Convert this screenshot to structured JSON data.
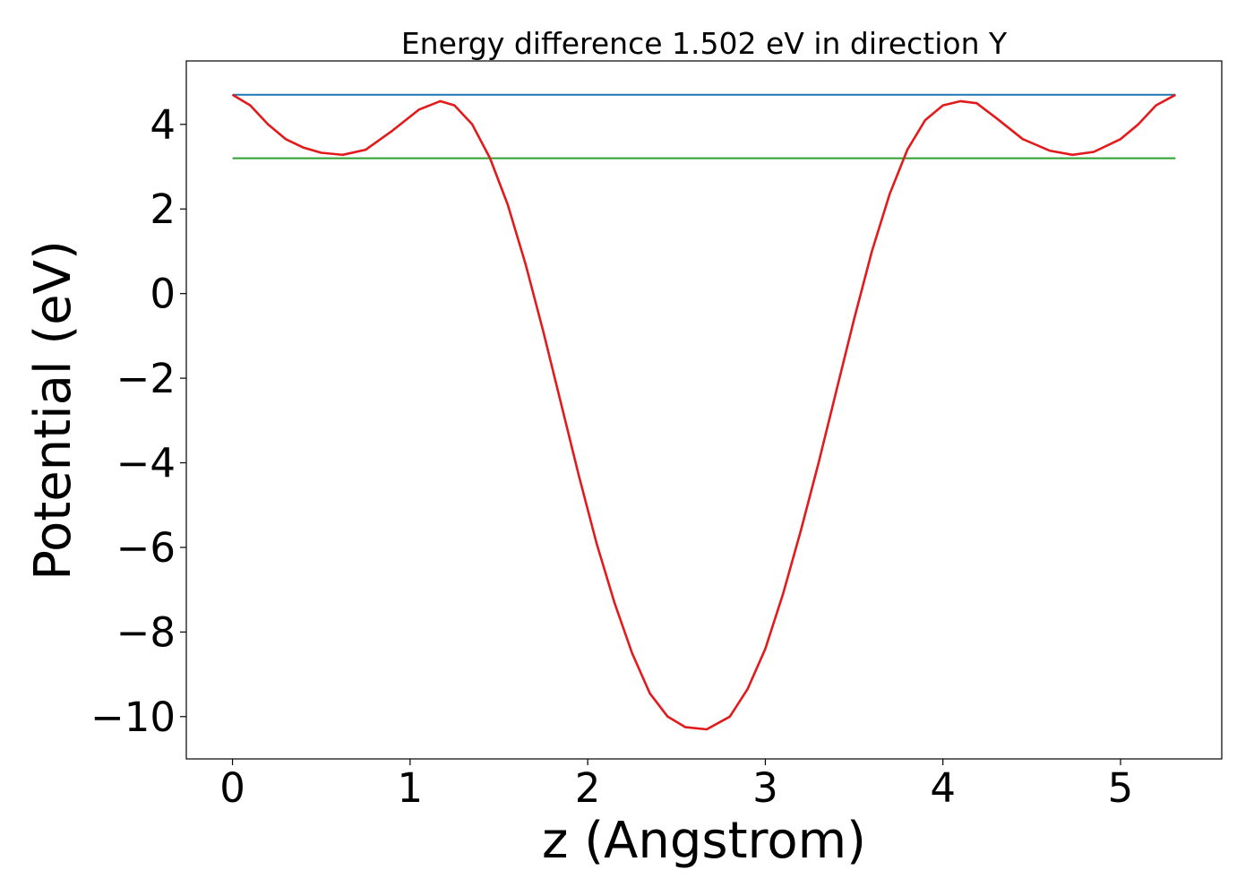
{
  "chart_data": {
    "type": "line",
    "title": "Energy difference 1.502 eV in direction Y",
    "xlabel": "z (Angstrom)",
    "ylabel": "Potential (eV)",
    "xlim": [
      -0.26,
      5.57
    ],
    "ylim": [
      -11.0,
      5.5
    ],
    "x_ticks": [
      0,
      1,
      2,
      3,
      4,
      5
    ],
    "x_tick_labels": [
      "0",
      "1",
      "2",
      "3",
      "4",
      "5"
    ],
    "y_ticks": [
      4,
      2,
      0,
      -2,
      -4,
      -6,
      -8,
      -10
    ],
    "y_tick_labels": [
      "4",
      "2",
      "0",
      "−2",
      "−4",
      "−6",
      "−8",
      "−10"
    ],
    "grid": false,
    "series": [
      {
        "color": "#1f77b4",
        "x": [
          0,
          5.31
        ],
        "y": [
          4.7,
          4.7
        ]
      },
      {
        "color": "#2ca02c",
        "x": [
          0,
          5.31
        ],
        "y": [
          3.2,
          3.2
        ]
      },
      {
        "color": "#e31a1c",
        "x": [
          0,
          0.1,
          0.2,
          0.3,
          0.4,
          0.5,
          0.62,
          0.75,
          0.9,
          1.05,
          1.17,
          1.25,
          1.35,
          1.45,
          1.55,
          1.65,
          1.75,
          1.85,
          1.95,
          2.05,
          2.15,
          2.25,
          2.35,
          2.45,
          2.55,
          2.67,
          2.8,
          2.9,
          3.0,
          3.1,
          3.2,
          3.3,
          3.4,
          3.5,
          3.6,
          3.7,
          3.8,
          3.9,
          4.0,
          4.1,
          4.19,
          4.3,
          4.45,
          4.6,
          4.73,
          4.85,
          5.0,
          5.1,
          5.2,
          5.31
        ],
        "y": [
          4.7,
          4.45,
          4.0,
          3.65,
          3.45,
          3.33,
          3.28,
          3.4,
          3.85,
          4.35,
          4.55,
          4.45,
          4.0,
          3.2,
          2.1,
          0.7,
          -0.9,
          -2.6,
          -4.3,
          -5.9,
          -7.3,
          -8.5,
          -9.45,
          -10.0,
          -10.25,
          -10.3,
          -10.0,
          -9.35,
          -8.4,
          -7.1,
          -5.6,
          -4.0,
          -2.3,
          -0.6,
          1.0,
          2.35,
          3.4,
          4.1,
          4.45,
          4.55,
          4.5,
          4.15,
          3.65,
          3.38,
          3.28,
          3.35,
          3.65,
          4.0,
          4.45,
          4.7
        ]
      }
    ]
  }
}
